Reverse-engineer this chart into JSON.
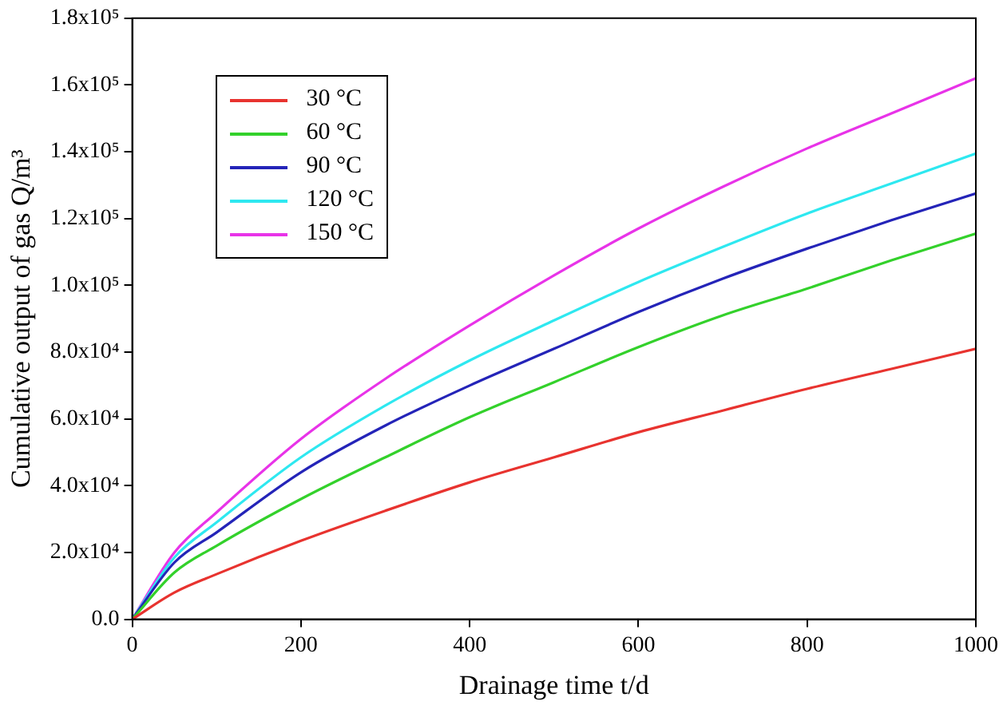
{
  "chart_data": {
    "type": "line",
    "xlabel": "Drainage time t/d",
    "ylabel": "Cumulative output of gas Q/m³",
    "x": [
      0,
      50,
      100,
      200,
      300,
      400,
      500,
      600,
      700,
      800,
      900,
      1000
    ],
    "series": [
      {
        "name": "30 °C",
        "color": "#e8332f",
        "values": [
          0,
          8000,
          13500,
          23500,
          32500,
          41000,
          48500,
          56000,
          62500,
          69000,
          75000,
          81000
        ]
      },
      {
        "name": "60 °C",
        "color": "#33d12b",
        "values": [
          0,
          14000,
          22000,
          36000,
          48500,
          60500,
          71000,
          81500,
          91000,
          99000,
          107500,
          115500
        ]
      },
      {
        "name": "90 °C",
        "color": "#2424b8",
        "values": [
          0,
          17000,
          26000,
          44000,
          58000,
          70000,
          81000,
          92000,
          102000,
          111000,
          119500,
          127500
        ]
      },
      {
        "name": "120 °C",
        "color": "#2ee8f0",
        "values": [
          0,
          18500,
          29000,
          48500,
          64000,
          77500,
          89500,
          101000,
          111500,
          121500,
          130500,
          139500
        ]
      },
      {
        "name": "150 °C",
        "color": "#e833e8",
        "values": [
          0,
          20000,
          32000,
          54000,
          72000,
          88000,
          103000,
          117000,
          129500,
          141000,
          151500,
          162000
        ]
      }
    ],
    "xlim": [
      0,
      1000
    ],
    "xticks": [
      0,
      200,
      400,
      600,
      800,
      1000
    ],
    "ylim": [
      0,
      180000
    ],
    "yticks": [
      {
        "value": 0,
        "label": "0.0"
      },
      {
        "value": 20000,
        "label": "2.0x10⁴"
      },
      {
        "value": 40000,
        "label": "4.0x10⁴"
      },
      {
        "value": 60000,
        "label": "6.0x10⁴"
      },
      {
        "value": 80000,
        "label": "8.0x10⁴"
      },
      {
        "value": 100000,
        "label": "1.0x10⁵"
      },
      {
        "value": 120000,
        "label": "1.2x10⁵"
      },
      {
        "value": 140000,
        "label": "1.4x10⁵"
      },
      {
        "value": 160000,
        "label": "1.6x10⁵"
      },
      {
        "value": 180000,
        "label": "1.8x10⁵"
      }
    ],
    "grid": false,
    "legend": "top left",
    "marker": "none",
    "line_style": "solid"
  }
}
